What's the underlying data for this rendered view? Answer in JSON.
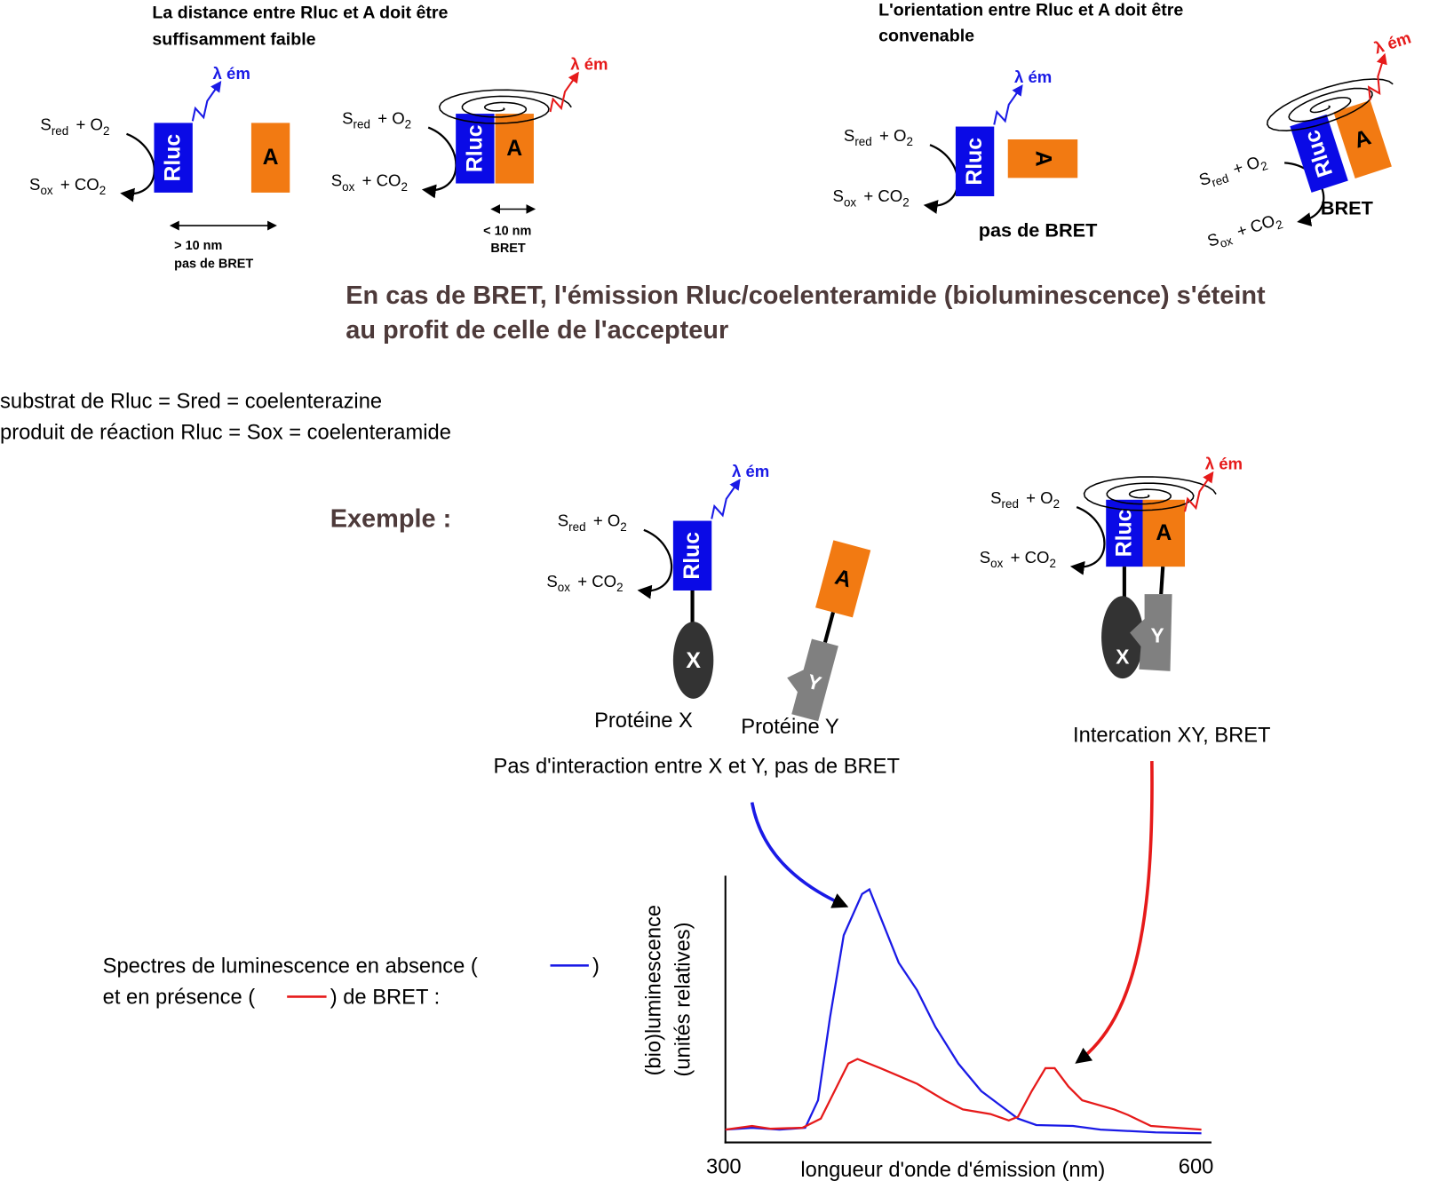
{
  "top_left": {
    "title": [
      "La distance entre Rluc et A doit être",
      "suffisamment faible"
    ],
    "far_label": [
      "> 10 nm",
      "pas de BRET"
    ],
    "near_label": [
      "< 10 nm",
      "BRET"
    ]
  },
  "top_right": {
    "title": [
      "L'orientation entre Rluc et A doit être",
      "convenable"
    ],
    "bad_label": "pas de BRET",
    "good_label": "BRET"
  },
  "labels": {
    "rluc": "Rluc",
    "acceptor": "A",
    "x": "X",
    "y": "Y",
    "emission": "λ ém",
    "reaction": {
      "top": [
        "S",
        "red",
        "+ O",
        "2"
      ],
      "bottom": [
        "S",
        "ox",
        "+ CO",
        "2"
      ]
    }
  },
  "conclusion": [
    "En cas de BRET, l'émission Rluc/coelenteramide (bioluminescence) s'éteint",
    "au profit de celle de l'accepteur"
  ],
  "definitions": [
    "substrat de Rluc = Sred = coelenterazine",
    "produit de réaction Rluc = Sox = coelenteramide"
  ],
  "example": {
    "label": "Exemple :",
    "protein_x": "Protéine X",
    "protein_y": "Protéine Y",
    "no_interaction": "Pas d'interaction entre X et Y, pas de BRET",
    "interaction": "Intercation XY, BRET"
  },
  "spectra": {
    "legend": [
      "Spectres de luminescence en absence (",
      ")",
      "et en présence (",
      ") de BRET :"
    ],
    "y_label": [
      "(bio)luminescence",
      "(unités relatives)"
    ],
    "x_label": "longueur d'onde d'émission (nm)",
    "x_min": "300",
    "x_max": "600"
  }
}
